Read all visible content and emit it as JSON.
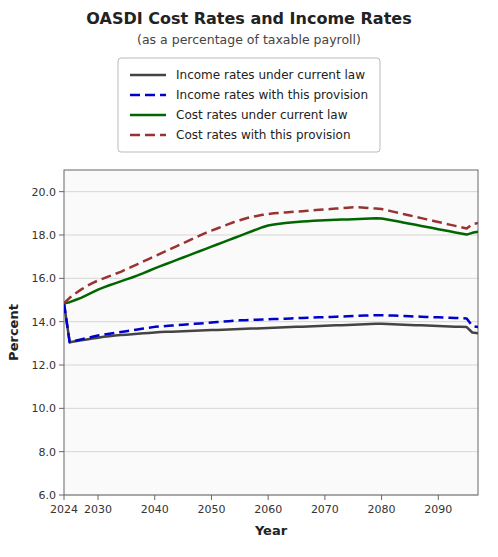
{
  "chart_data": {
    "type": "line",
    "title": "OASDI Cost Rates and Income Rates",
    "subtitle": "(as a percentage of taxable payroll)",
    "xlabel": "Year",
    "ylabel": "Percent",
    "xlim": [
      2024,
      2097
    ],
    "ylim": [
      6.0,
      21.0
    ],
    "xticks": [
      2024,
      2030,
      2040,
      2050,
      2060,
      2070,
      2080,
      2090
    ],
    "yticks": [
      {
        "value": 6.0,
        "label": "6.0"
      },
      {
        "value": 8.0,
        "label": "8.0"
      },
      {
        "value": 10.0,
        "label": "10.0"
      },
      {
        "value": 12.0,
        "label": "12.0"
      },
      {
        "value": 14.0,
        "label": "14.0"
      },
      {
        "value": 16.0,
        "label": "16.0"
      },
      {
        "value": 18.0,
        "label": "18.0"
      },
      {
        "value": 20.0,
        "label": "20.0"
      }
    ],
    "grid": "y",
    "legend": "top",
    "x": [
      2024,
      2025,
      2026,
      2027,
      2028,
      2029,
      2030,
      2031,
      2032,
      2033,
      2034,
      2035,
      2036,
      2037,
      2038,
      2039,
      2040,
      2041,
      2042,
      2043,
      2044,
      2045,
      2046,
      2047,
      2048,
      2049,
      2050,
      2051,
      2052,
      2053,
      2054,
      2055,
      2056,
      2057,
      2058,
      2059,
      2060,
      2061,
      2062,
      2063,
      2064,
      2065,
      2066,
      2067,
      2068,
      2069,
      2070,
      2071,
      2072,
      2073,
      2074,
      2075,
      2076,
      2077,
      2078,
      2079,
      2080,
      2081,
      2082,
      2083,
      2084,
      2085,
      2086,
      2087,
      2088,
      2089,
      2090,
      2091,
      2092,
      2093,
      2094,
      2095,
      2096,
      2097
    ],
    "series": [
      {
        "name": "Income rates under current law",
        "color": "#444444",
        "line_style": "solid",
        "values": [
          14.85,
          13.05,
          13.1,
          13.14,
          13.18,
          13.22,
          13.26,
          13.3,
          13.33,
          13.36,
          13.38,
          13.4,
          13.42,
          13.44,
          13.46,
          13.48,
          13.5,
          13.52,
          13.53,
          13.54,
          13.55,
          13.56,
          13.57,
          13.58,
          13.59,
          13.6,
          13.61,
          13.62,
          13.63,
          13.64,
          13.65,
          13.66,
          13.67,
          13.68,
          13.69,
          13.7,
          13.71,
          13.72,
          13.73,
          13.74,
          13.75,
          13.76,
          13.77,
          13.78,
          13.79,
          13.8,
          13.81,
          13.82,
          13.83,
          13.84,
          13.85,
          13.86,
          13.87,
          13.88,
          13.89,
          13.9,
          13.9,
          13.89,
          13.88,
          13.87,
          13.86,
          13.85,
          13.84,
          13.83,
          13.82,
          13.81,
          13.8,
          13.79,
          13.78,
          13.77,
          13.76,
          13.75,
          13.5,
          13.47
        ]
      },
      {
        "name": "Income rates with this provision",
        "color": "#0000cc",
        "line_style": "dashed",
        "values": [
          14.85,
          13.05,
          13.12,
          13.18,
          13.24,
          13.3,
          13.36,
          13.4,
          13.44,
          13.48,
          13.52,
          13.56,
          13.6,
          13.64,
          13.68,
          13.72,
          13.76,
          13.78,
          13.8,
          13.82,
          13.84,
          13.86,
          13.88,
          13.9,
          13.92,
          13.94,
          13.96,
          13.98,
          14.0,
          14.02,
          14.04,
          14.06,
          14.07,
          14.08,
          14.09,
          14.1,
          14.11,
          14.12,
          14.13,
          14.14,
          14.15,
          14.16,
          14.17,
          14.18,
          14.19,
          14.2,
          14.21,
          14.22,
          14.23,
          14.24,
          14.25,
          14.26,
          14.27,
          14.28,
          14.29,
          14.3,
          14.3,
          14.29,
          14.28,
          14.27,
          14.26,
          14.25,
          14.24,
          14.23,
          14.22,
          14.21,
          14.2,
          14.19,
          14.18,
          14.17,
          14.16,
          14.15,
          13.8,
          13.75
        ]
      },
      {
        "name": "Cost rates under current law",
        "color": "#006600",
        "line_style": "solid",
        "values": [
          14.85,
          14.9,
          15.0,
          15.1,
          15.22,
          15.35,
          15.48,
          15.58,
          15.68,
          15.77,
          15.86,
          15.95,
          16.04,
          16.14,
          16.24,
          16.35,
          16.46,
          16.56,
          16.66,
          16.76,
          16.86,
          16.96,
          17.06,
          17.16,
          17.26,
          17.36,
          17.46,
          17.56,
          17.66,
          17.76,
          17.86,
          17.96,
          18.06,
          18.16,
          18.26,
          18.36,
          18.44,
          18.48,
          18.52,
          18.55,
          18.58,
          18.6,
          18.62,
          18.64,
          18.66,
          18.67,
          18.68,
          18.69,
          18.7,
          18.71,
          18.72,
          18.73,
          18.74,
          18.75,
          18.76,
          18.77,
          18.76,
          18.72,
          18.67,
          18.62,
          18.57,
          18.52,
          18.47,
          18.42,
          18.37,
          18.32,
          18.27,
          18.22,
          18.17,
          18.12,
          18.07,
          18.02,
          18.1,
          18.15
        ]
      },
      {
        "name": "Cost rates with this provision",
        "color": "#993333",
        "line_style": "dashed",
        "values": [
          14.85,
          15.1,
          15.3,
          15.48,
          15.64,
          15.78,
          15.9,
          16.0,
          16.1,
          16.2,
          16.3,
          16.42,
          16.54,
          16.66,
          16.78,
          16.9,
          17.02,
          17.14,
          17.26,
          17.38,
          17.5,
          17.62,
          17.74,
          17.86,
          17.98,
          18.1,
          18.2,
          18.3,
          18.4,
          18.5,
          18.6,
          18.68,
          18.76,
          18.83,
          18.88,
          18.93,
          18.97,
          19.0,
          19.02,
          19.04,
          19.06,
          19.08,
          19.1,
          19.12,
          19.14,
          19.16,
          19.18,
          19.2,
          19.22,
          19.24,
          19.26,
          19.28,
          19.28,
          19.26,
          19.24,
          19.22,
          19.2,
          19.14,
          19.08,
          19.02,
          18.96,
          18.9,
          18.84,
          18.78,
          18.72,
          18.66,
          18.6,
          18.54,
          18.48,
          18.42,
          18.36,
          18.3,
          18.5,
          18.55
        ]
      }
    ]
  }
}
